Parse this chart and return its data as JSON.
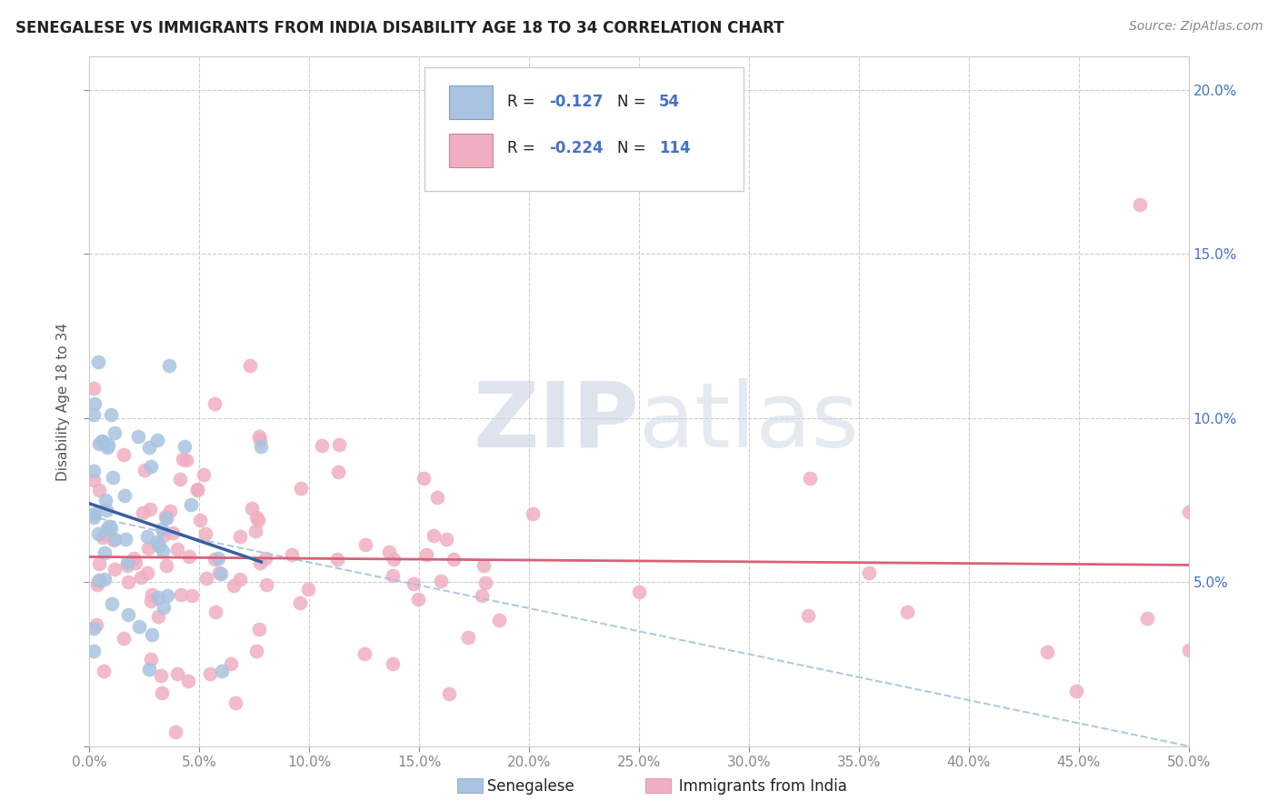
{
  "title": "SENEGALESE VS IMMIGRANTS FROM INDIA DISABILITY AGE 18 TO 34 CORRELATION CHART",
  "source": "Source: ZipAtlas.com",
  "ylabel": "Disability Age 18 to 34",
  "xlim": [
    0.0,
    0.5
  ],
  "ylim": [
    0.0,
    0.21
  ],
  "xtick_vals": [
    0.0,
    0.05,
    0.1,
    0.15,
    0.2,
    0.25,
    0.3,
    0.35,
    0.4,
    0.45,
    0.5
  ],
  "ytick_vals": [
    0.0,
    0.05,
    0.1,
    0.15,
    0.2
  ],
  "senegalese_color": "#a8c4e0",
  "india_color": "#f0afc0",
  "senegalese_line_color": "#3a5fa0",
  "india_line_color": "#d9607a",
  "dash_line_color": "#a8c4e0",
  "background_color": "#ffffff",
  "grid_color": "#cccccc",
  "ytick_color": "#4472c4",
  "xtick_color": "#555555",
  "watermark_color": "#d0d8e8",
  "title_color": "#222222",
  "source_color": "#888888",
  "legend_text_color": "#222222",
  "legend_value_color": "#4472c4",
  "sen_R": -0.127,
  "sen_N": 54,
  "ind_R": -0.224,
  "ind_N": 114,
  "sen_seed": 42,
  "ind_seed": 17
}
